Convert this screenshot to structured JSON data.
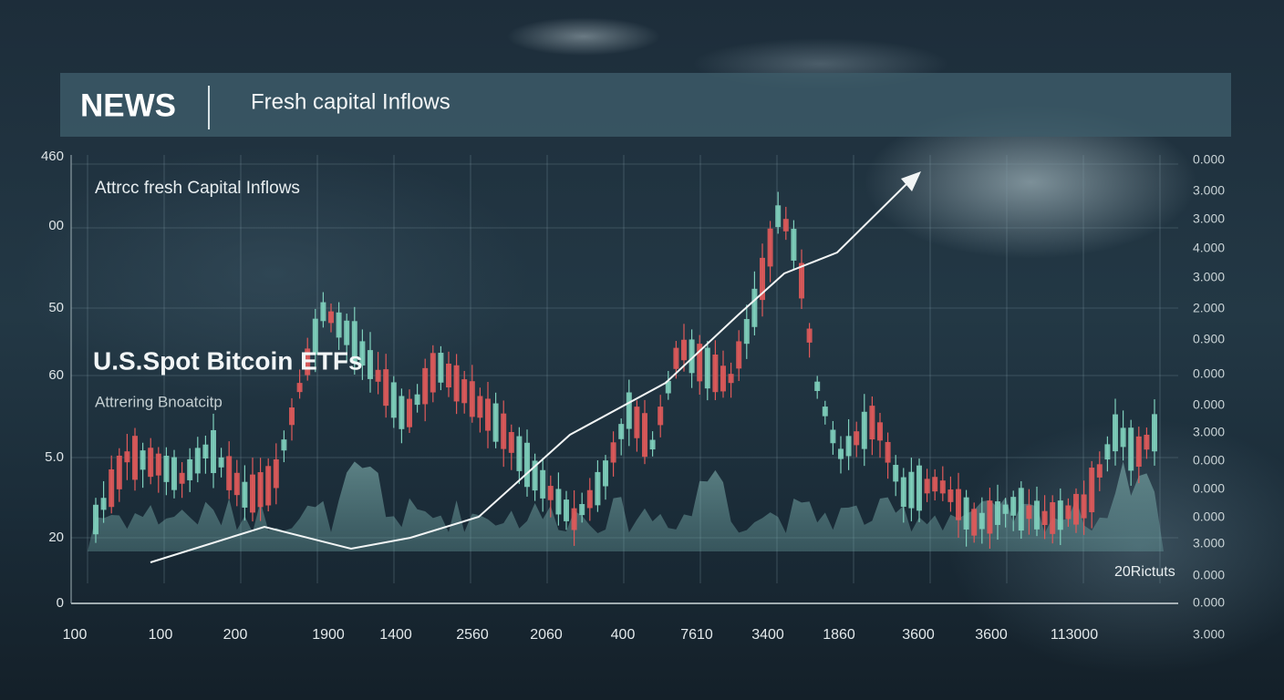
{
  "header": {
    "tag": "NEWS",
    "headline": "Fresh capital Inflows"
  },
  "chart": {
    "subtitle": "Attrcc fresh Capital Inflows",
    "title": "U.S.Spot Bitcoin ETFs",
    "caption": "Attrering Bnoatcitp",
    "corner_note": "20Rictuts",
    "left_axis": [
      "460",
      "00",
      "50",
      "60",
      "5.0",
      "20",
      "0"
    ],
    "right_axis": [
      "0.000",
      "3.000",
      "3.000",
      "4.000",
      "3.000",
      "2.000",
      "0.900",
      "0.000",
      "0.000",
      "3.000",
      "0.000",
      "0.000",
      "0.000",
      "3.000",
      "0.000",
      "0.000",
      "3.000"
    ],
    "bottom_axis": [
      "100",
      "100",
      "200",
      "1900",
      "1400",
      "2560",
      "2060",
      "400",
      "7610",
      "3400",
      "1860",
      "3600",
      "3600",
      "113000"
    ]
  }
}
